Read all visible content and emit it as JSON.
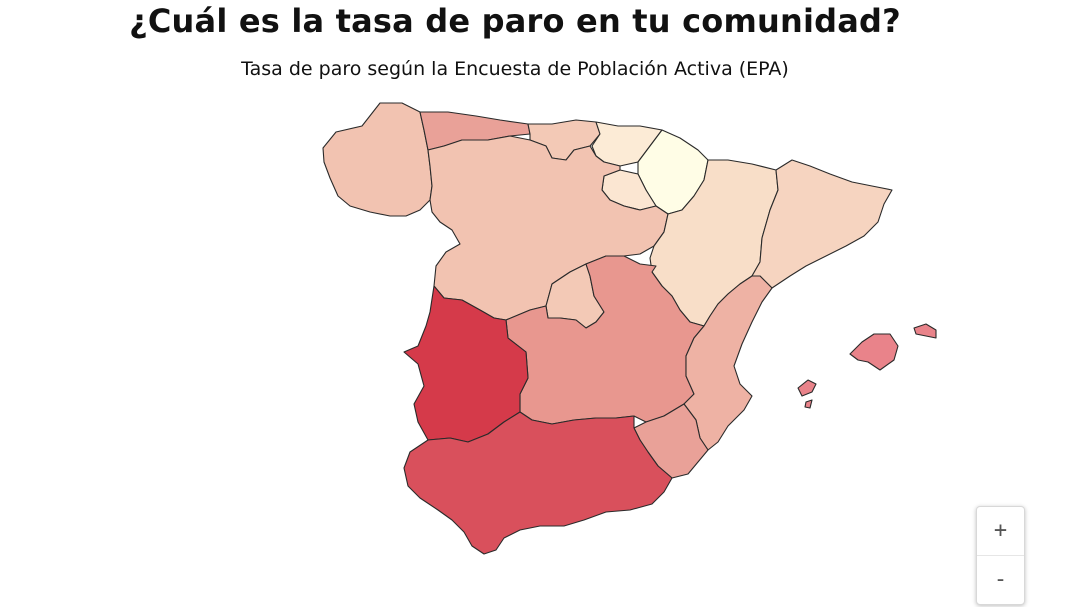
{
  "header": {
    "title": "¿Cuál es la tasa de paro en tu comunidad?",
    "subtitle": "Tasa de paro según la Encuesta de Población Activa (EPA)"
  },
  "map": {
    "regions": [
      {
        "id": "galicia",
        "color": "#f2c3b1"
      },
      {
        "id": "asturias",
        "color": "#e9a198"
      },
      {
        "id": "cantabria",
        "color": "#f3c9b6"
      },
      {
        "id": "pais-vasco",
        "color": "#fcebd6"
      },
      {
        "id": "navarra",
        "color": "#fffde6"
      },
      {
        "id": "la-rioja",
        "color": "#fbe6d2"
      },
      {
        "id": "castilla-y-leon",
        "color": "#f2c3b1"
      },
      {
        "id": "aragon",
        "color": "#f8dec8"
      },
      {
        "id": "cataluna",
        "color": "#f6d4c0"
      },
      {
        "id": "madrid",
        "color": "#f3c9b6"
      },
      {
        "id": "castilla-la-mancha",
        "color": "#e8978f"
      },
      {
        "id": "extremadura",
        "color": "#d53a4a"
      },
      {
        "id": "valencia",
        "color": "#eeb2a4"
      },
      {
        "id": "murcia",
        "color": "#e9a198"
      },
      {
        "id": "andalucia",
        "color": "#d9505c"
      },
      {
        "id": "baleares",
        "color": "#e9838a"
      }
    ]
  },
  "zoom": {
    "in_label": "+",
    "out_label": "-"
  }
}
